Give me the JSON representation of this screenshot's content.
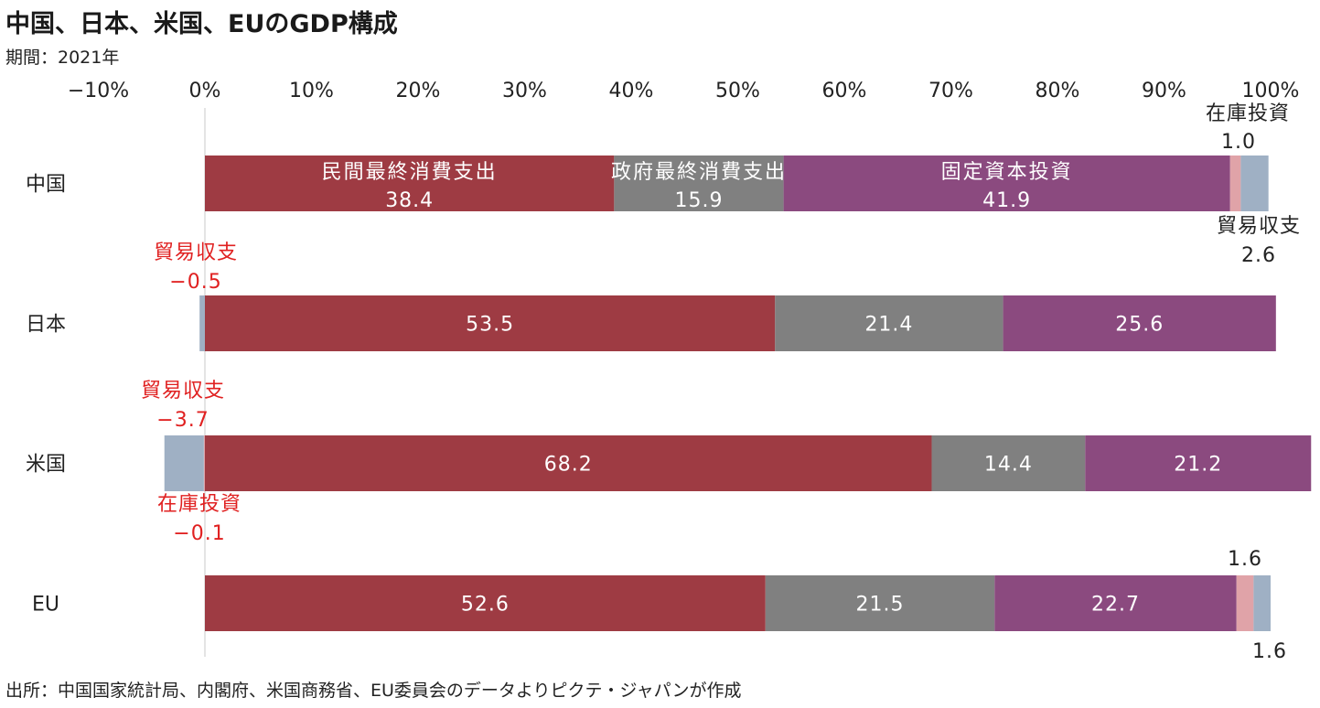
{
  "title": "中国、日本、米国、EUのGDP構成",
  "subtitle": "期間：2021年",
  "source": "出所：中国国家統計局、内閣府、米国商務省、EU委員会のデータよりピクテ・ジャパンが作成",
  "colors": {
    "private_consumption": "#9e3b43",
    "government_consumption": "#808080",
    "fixed_investment": "#8b4a7f",
    "inventory": "#e0a3a8",
    "trade_balance": "#9fb0c4",
    "annotation_red": "#e02020",
    "axis_line": "#c8c8c8",
    "text": "#222222"
  },
  "chart_data": {
    "type": "bar",
    "orientation": "horizontal",
    "stacked": true,
    "categories": [
      "中国",
      "日本",
      "米国",
      "EU"
    ],
    "x_ticks": [
      "−10%",
      "0%",
      "10%",
      "20%",
      "30%",
      "40%",
      "50%",
      "60%",
      "70%",
      "80%",
      "90%",
      "100%"
    ],
    "xlim": [
      -10,
      100
    ],
    "series": [
      {
        "key": "private_consumption",
        "name": "民間最終消費支出",
        "values": [
          38.4,
          53.5,
          68.2,
          52.6
        ]
      },
      {
        "key": "government_consumption",
        "name": "政府最終消費支出",
        "values": [
          15.9,
          21.4,
          14.4,
          21.5
        ]
      },
      {
        "key": "fixed_investment",
        "name": "固定資本投資",
        "values": [
          41.9,
          25.6,
          21.2,
          22.7
        ]
      },
      {
        "key": "inventory",
        "name": "在庫投資",
        "values": [
          1.0,
          0.0,
          -0.1,
          1.6
        ]
      },
      {
        "key": "trade_balance",
        "name": "貿易収支",
        "values": [
          2.6,
          -0.5,
          -3.7,
          1.6
        ]
      }
    ],
    "data_labels": [
      [
        "38.4",
        "53.5",
        "68.2",
        "52.6"
      ],
      [
        "15.9",
        "21.4",
        "14.4",
        "21.5"
      ],
      [
        "41.9",
        "25.6",
        "21.2",
        "22.7"
      ]
    ],
    "series_labels_on_first_bar": [
      "民間最終消費支出",
      "政府最終消費支出",
      "固定資本投資"
    ],
    "annotations": {
      "china_inventory_name": "在庫投資",
      "china_inventory_value": "1.0",
      "china_trade_name": "貿易収支",
      "china_trade_value": "2.6",
      "japan_trade_name": "貿易収支",
      "japan_trade_value": "−0.5",
      "us_trade_name": "貿易収支",
      "us_trade_value": "−3.7",
      "us_inventory_name": "在庫投資",
      "us_inventory_value": "−0.1",
      "eu_inventory_value": "1.6",
      "eu_trade_value": "1.6"
    }
  }
}
